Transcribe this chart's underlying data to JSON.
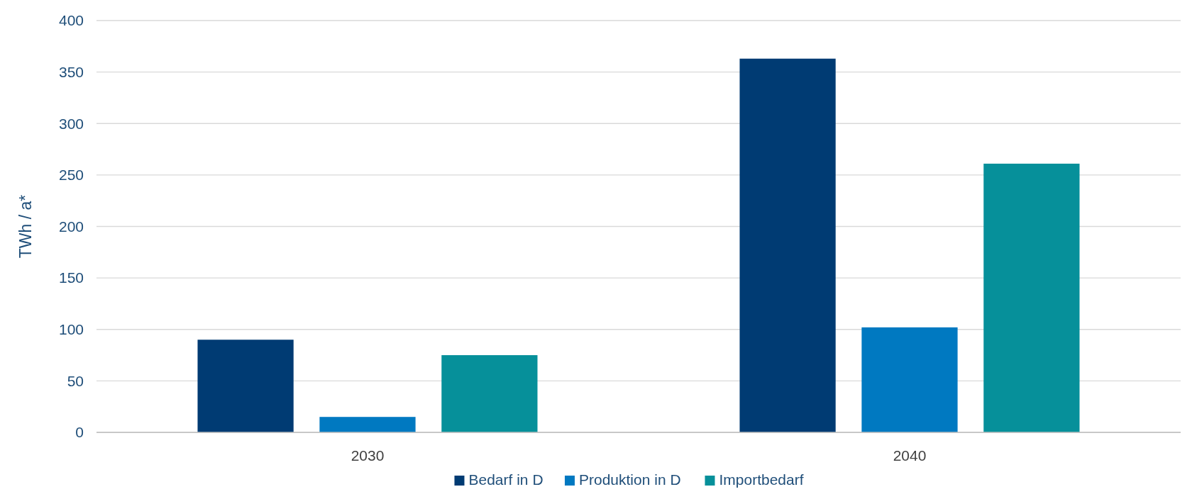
{
  "chart_data": {
    "type": "bar",
    "ylabel": "TWh / a*",
    "categories": [
      "2030",
      "2040"
    ],
    "series": [
      {
        "name": "Bedarf in D",
        "color": "#003b73",
        "values": [
          90,
          363
        ]
      },
      {
        "name": "Produktion in D",
        "color": "#0079c1",
        "values": [
          15,
          102
        ]
      },
      {
        "name": "Importbedarf",
        "color": "#06909a",
        "values": [
          75,
          261
        ]
      }
    ],
    "ylim": [
      0,
      400
    ],
    "yticks": [
      0,
      50,
      100,
      150,
      200,
      250,
      300,
      350,
      400
    ],
    "grid": "y",
    "legend": "bottom"
  }
}
